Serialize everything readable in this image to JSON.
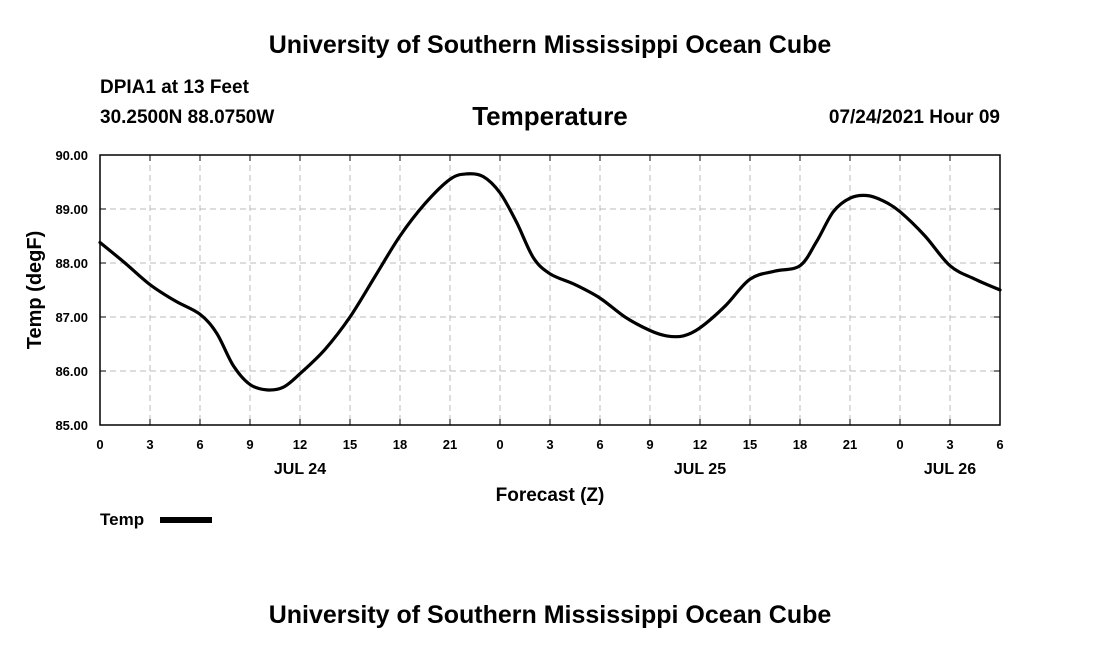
{
  "header": {
    "title": "University of Southern Mississippi Ocean Cube",
    "footer_title": "University of Southern Mississippi Ocean Cube",
    "station": "DPIA1 at 13 Feet",
    "coords": "30.2500N  88.0750W",
    "variable": "Temperature",
    "datetime": "07/24/2021 Hour 09"
  },
  "chart_data": {
    "type": "line",
    "ylabel": "Temp (degF)",
    "xlabel": "Forecast (Z)",
    "xlim": [
      0,
      54
    ],
    "ylim": [
      85,
      90
    ],
    "grid": true,
    "legend_placement": "bottom-left",
    "x_ticks": [
      {
        "x": 0,
        "label": "0"
      },
      {
        "x": 3,
        "label": "3"
      },
      {
        "x": 6,
        "label": "6"
      },
      {
        "x": 9,
        "label": "9"
      },
      {
        "x": 12,
        "label": "12"
      },
      {
        "x": 15,
        "label": "15"
      },
      {
        "x": 18,
        "label": "18"
      },
      {
        "x": 21,
        "label": "21"
      },
      {
        "x": 24,
        "label": "0"
      },
      {
        "x": 27,
        "label": "3"
      },
      {
        "x": 30,
        "label": "6"
      },
      {
        "x": 33,
        "label": "9"
      },
      {
        "x": 36,
        "label": "12"
      },
      {
        "x": 39,
        "label": "15"
      },
      {
        "x": 42,
        "label": "18"
      },
      {
        "x": 45,
        "label": "21"
      },
      {
        "x": 48,
        "label": "0"
      },
      {
        "x": 51,
        "label": "3"
      },
      {
        "x": 54,
        "label": "6"
      }
    ],
    "day_labels": [
      {
        "x": 12,
        "label": "JUL 24"
      },
      {
        "x": 36,
        "label": "JUL 25"
      },
      {
        "x": 51,
        "label": "JUL 26"
      }
    ],
    "y_ticks": [
      {
        "y": 85,
        "label": "85.00"
      },
      {
        "y": 86,
        "label": "86.00"
      },
      {
        "y": 87,
        "label": "87.00"
      },
      {
        "y": 88,
        "label": "88.00"
      },
      {
        "y": 89,
        "label": "89.00"
      },
      {
        "y": 90,
        "label": "90.00"
      }
    ],
    "series": [
      {
        "name": "Temp",
        "color": "#000000",
        "points": [
          [
            0,
            88.38
          ],
          [
            1.5,
            88.0
          ],
          [
            3,
            87.6
          ],
          [
            4.5,
            87.3
          ],
          [
            6,
            87.05
          ],
          [
            7,
            86.7
          ],
          [
            8,
            86.1
          ],
          [
            9,
            85.75
          ],
          [
            10,
            85.65
          ],
          [
            11,
            85.7
          ],
          [
            12,
            85.95
          ],
          [
            13.5,
            86.4
          ],
          [
            15,
            87.0
          ],
          [
            16.5,
            87.75
          ],
          [
            18,
            88.5
          ],
          [
            19.5,
            89.1
          ],
          [
            21,
            89.55
          ],
          [
            22,
            89.65
          ],
          [
            23,
            89.6
          ],
          [
            24,
            89.3
          ],
          [
            25,
            88.75
          ],
          [
            26,
            88.1
          ],
          [
            27,
            87.8
          ],
          [
            28.5,
            87.6
          ],
          [
            30,
            87.35
          ],
          [
            31.5,
            87.0
          ],
          [
            33,
            86.75
          ],
          [
            34,
            86.65
          ],
          [
            35,
            86.65
          ],
          [
            36,
            86.8
          ],
          [
            37.5,
            87.2
          ],
          [
            39,
            87.7
          ],
          [
            40.5,
            87.85
          ],
          [
            42,
            87.95
          ],
          [
            43,
            88.4
          ],
          [
            44,
            88.95
          ],
          [
            45,
            89.2
          ],
          [
            46,
            89.25
          ],
          [
            47,
            89.15
          ],
          [
            48,
            88.95
          ],
          [
            49.5,
            88.5
          ],
          [
            51,
            87.95
          ],
          [
            52.5,
            87.7
          ],
          [
            54,
            87.5
          ]
        ]
      }
    ]
  }
}
